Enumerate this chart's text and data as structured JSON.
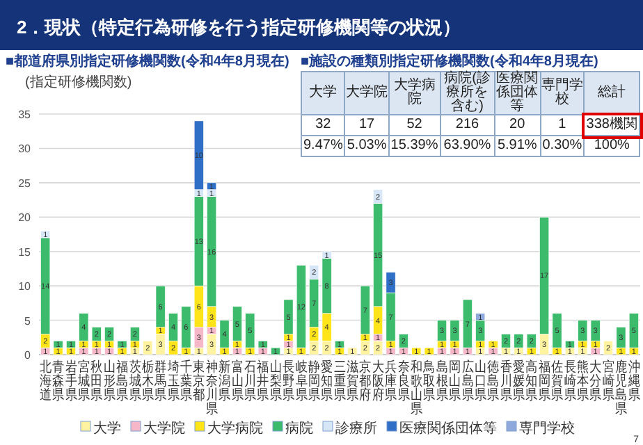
{
  "chart_data": [
    {
      "type": "bar",
      "stacked": true,
      "title": "■都道府県別指定研修機関数(令和4年8月現在)",
      "ylabel": "(指定研修機関数)",
      "annotations": [
        "2．現状（特定行為研修を行う指定研修機関等の状況）",
        "7"
      ],
      "categories": [
        "北海道",
        "青森県",
        "岩手県",
        "宮城県",
        "秋田県",
        "山形県",
        "福島県",
        "茨城県",
        "栃木県",
        "群馬県",
        "埼玉県",
        "千葉県",
        "東京都",
        "神奈川県",
        "新潟県",
        "富山県",
        "石川県",
        "福井県",
        "山梨県",
        "長野県",
        "岐阜県",
        "静岡県",
        "愛知県",
        "三重県",
        "滋賀県",
        "京都府",
        "大阪府",
        "兵庫県",
        "奈良県",
        "和歌山県",
        "鳥取県",
        "島根県",
        "岡山県",
        "広島県",
        "山口県",
        "徳島県",
        "香川県",
        "愛媛県",
        "高知県",
        "福岡県",
        "佐賀県",
        "長崎県",
        "熊本県",
        "大分県",
        "宮崎県",
        "鹿児島県",
        "沖縄県"
      ],
      "series": [
        {
          "name": "大学",
          "color": "#fff2a0",
          "values": [
            null,
            null,
            null,
            null,
            null,
            null,
            null,
            1,
            2,
            3,
            null,
            null,
            1,
            3,
            null,
            null,
            null,
            null,
            null,
            1,
            null,
            2,
            2,
            null,
            1,
            2,
            2,
            null,
            null,
            null,
            null,
            null,
            null,
            null,
            1,
            null,
            1,
            1,
            null,
            3,
            null,
            1,
            1,
            null,
            2,
            null,
            null
          ]
        },
        {
          "name": "大学院",
          "color": "#f6b8c8",
          "values": [
            1,
            null,
            null,
            1,
            1,
            1,
            null,
            null,
            null,
            null,
            null,
            null,
            3,
            1,
            null,
            1,
            null,
            1,
            null,
            1,
            null,
            null,
            null,
            null,
            null,
            null,
            1,
            1,
            1,
            null,
            null,
            1,
            1,
            1,
            null,
            1,
            null,
            null,
            null,
            null,
            null,
            null,
            null,
            1,
            null,
            null,
            null
          ]
        },
        {
          "name": "大学病院",
          "color": "#ffe419",
          "values": [
            2,
            1,
            1,
            1,
            1,
            1,
            1,
            1,
            null,
            1,
            2,
            1,
            6,
            3,
            1,
            1,
            1,
            null,
            null,
            1,
            1,
            2,
            4,
            1,
            null,
            1,
            4,
            1,
            null,
            1,
            1,
            1,
            1,
            null,
            1,
            1,
            null,
            null,
            1,
            null,
            1,
            null,
            1,
            1,
            null,
            1,
            1
          ]
        },
        {
          "name": "病院",
          "color": "#3dbb6c",
          "values": [
            14,
            1,
            1,
            4,
            2,
            2,
            1,
            2,
            null,
            6,
            4,
            6,
            13,
            16,
            4,
            5,
            5,
            1,
            1,
            5,
            12,
            7,
            8,
            1,
            null,
            7,
            15,
            7,
            2,
            null,
            null,
            3,
            3,
            7,
            3,
            null,
            2,
            2,
            2,
            17,
            5,
            1,
            3,
            3,
            null,
            3,
            5
          ]
        },
        {
          "name": "診療所",
          "color": "#d6e6f7",
          "values": [
            1,
            null,
            null,
            null,
            null,
            null,
            null,
            null,
            null,
            null,
            null,
            null,
            1,
            1,
            null,
            null,
            null,
            null,
            null,
            null,
            null,
            2,
            1,
            null,
            null,
            null,
            2,
            null,
            null,
            null,
            null,
            null,
            null,
            null,
            null,
            null,
            null,
            null,
            null,
            null,
            null,
            null,
            null,
            null,
            null,
            null,
            null
          ]
        },
        {
          "name": "医療関係団体等",
          "color": "#2f6fc6",
          "values": [
            null,
            null,
            null,
            null,
            null,
            null,
            null,
            null,
            null,
            null,
            null,
            null,
            10,
            1,
            null,
            null,
            null,
            null,
            null,
            null,
            null,
            null,
            null,
            null,
            null,
            null,
            null,
            3,
            null,
            null,
            null,
            null,
            null,
            null,
            null,
            null,
            null,
            null,
            null,
            null,
            null,
            null,
            null,
            null,
            null,
            null,
            null
          ]
        },
        {
          "name": "専門学校",
          "color": "#8fa9dc",
          "values": [
            null,
            null,
            null,
            null,
            null,
            null,
            null,
            null,
            null,
            null,
            null,
            null,
            null,
            null,
            null,
            null,
            null,
            null,
            null,
            null,
            null,
            null,
            null,
            null,
            null,
            null,
            null,
            null,
            null,
            null,
            null,
            null,
            null,
            null,
            1,
            null,
            null,
            null,
            null,
            null,
            null,
            null,
            null,
            null,
            null,
            null,
            null
          ]
        }
      ],
      "ylim": [
        0,
        35
      ],
      "yticks": [
        0,
        5,
        10,
        15,
        20,
        25,
        30,
        35
      ],
      "grid": "y",
      "legend": "bottom",
      "data_labels": true
    },
    {
      "type": "other",
      "title": "■施設の種類別指定研修機関数(令和4年8月現在)",
      "categories": [
        "大学",
        "大学院",
        "大学病院",
        "病院(診療所を含む)",
        "医療関係団体等",
        "専門学校",
        "総計"
      ],
      "series": [
        {
          "values": [
            32,
            17,
            52,
            216,
            20,
            1,
            338
          ],
          "value_labels": [
            "32",
            "17",
            "52",
            "216",
            "20",
            "1",
            "338機関"
          ]
        },
        {
          "values": [
            9.47,
            5.03,
            15.39,
            63.9,
            5.91,
            0.3,
            100
          ],
          "value_labels": [
            "9.47%",
            "5.03%",
            "15.39%",
            "63.90%",
            "5.91%",
            "0.30%",
            "100%"
          ]
        }
      ]
    }
  ]
}
